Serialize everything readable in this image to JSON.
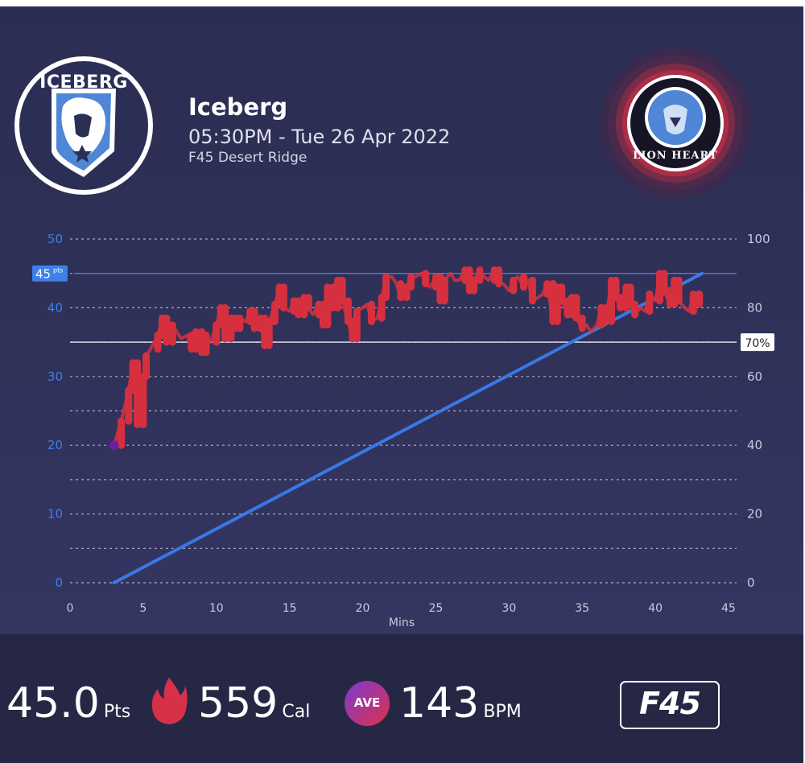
{
  "header": {
    "title": "Iceberg",
    "datetime": "05:30PM - Tue 26 Apr 2022",
    "location": "F45 Desert Ridge"
  },
  "team_logo": {
    "text": "ICEBERG",
    "icon": "bear-icon"
  },
  "opponent_logo": {
    "text": "LION HEART",
    "icon": "lion-icon"
  },
  "stats": {
    "points_value": "45.0",
    "points_unit": "Pts",
    "calories_value": "559",
    "calories_unit": "Cal",
    "bpm_value": "143",
    "bpm_unit": "BPM",
    "ave_label": "AVE"
  },
  "brand": {
    "text": "F45"
  },
  "colors": {
    "background": "#2f3158",
    "heart_rate": "#d6303f",
    "points_line": "#3a78e6",
    "left_axis": "#3f7fe8",
    "start_marker": "#6a1fa0"
  },
  "chart_data": {
    "type": "line",
    "xlabel": "Mins",
    "x_ticks": [
      0,
      5,
      10,
      15,
      20,
      25,
      30,
      35,
      40,
      45
    ],
    "xlim": [
      0,
      45
    ],
    "left_axis": {
      "ticks": [
        0,
        10,
        20,
        30,
        40,
        50
      ],
      "ylim": [
        0,
        50
      ]
    },
    "right_axis": {
      "ticks": [
        0,
        20,
        40,
        60,
        80,
        100
      ],
      "ylim": [
        0,
        100
      ]
    },
    "points_marker_label": "45",
    "points_marker_unit": "pts",
    "points_marker_value": 45,
    "threshold_label": "70%",
    "threshold_value": 70,
    "series": [
      {
        "axis": "left",
        "x": [
          3,
          43.2
        ],
        "y": [
          0,
          45
        ]
      },
      {
        "axis": "right",
        "x": [
          3,
          3.5,
          4,
          4.3,
          4.6,
          5,
          5.2,
          5.5,
          6,
          6.3,
          6.6,
          7,
          7.3,
          7.6,
          8,
          8.3,
          8.6,
          9,
          9.3,
          9.6,
          10,
          10.3,
          10.6,
          11,
          11.3,
          11.6,
          12,
          12.3,
          12.6,
          13,
          13.3,
          13.6,
          14,
          14.3,
          14.6,
          15,
          15.3,
          15.6,
          16,
          16.3,
          16.6,
          17,
          17.3,
          17.6,
          18,
          18.3,
          18.6,
          19,
          19.3,
          19.6,
          20,
          20.3,
          20.6,
          21,
          21.3,
          21.6,
          22,
          22.3,
          22.6,
          23,
          23.3,
          23.6,
          24,
          24.3,
          24.6,
          25,
          25.3,
          25.6,
          26,
          26.3,
          26.6,
          27,
          27.3,
          27.6,
          28,
          28.3,
          28.6,
          29,
          29.3,
          29.6,
          30,
          30.3,
          30.6,
          31,
          31.3,
          31.6,
          32,
          32.3,
          32.6,
          33,
          33.3,
          33.6,
          34,
          34.3,
          34.6,
          35,
          35.3,
          35.6,
          36,
          36.3,
          36.6,
          37,
          37.3,
          37.6,
          38,
          38.3,
          38.6,
          39,
          39.3,
          39.6,
          40,
          40.3,
          40.6,
          41,
          41.3,
          41.6,
          42,
          42.3,
          42.6,
          43,
          43.2
        ],
        "y": [
          40,
          47,
          56,
          64,
          46,
          60,
          66,
          68,
          72,
          77,
          70,
          75,
          73,
          71,
          72,
          68,
          73,
          67,
          72,
          70,
          75,
          80,
          71,
          77,
          74,
          77,
          76,
          79,
          74,
          77,
          69,
          76,
          81,
          86,
          80,
          79,
          82,
          78,
          83,
          80,
          78,
          81,
          75,
          86,
          80,
          88,
          82,
          76,
          71,
          79,
          80,
          81,
          76,
          77,
          83,
          89,
          89,
          87,
          83,
          86,
          89,
          89,
          90,
          87,
          86,
          89,
          82,
          88,
          90,
          88,
          88,
          91,
          85,
          88,
          91,
          89,
          88,
          91,
          87,
          87,
          85,
          88,
          89,
          86,
          88,
          82,
          83,
          84,
          87,
          76,
          86,
          82,
          78,
          83,
          77,
          74,
          75,
          73,
          75,
          80,
          76,
          88,
          83,
          80,
          86,
          81,
          78,
          80,
          79,
          84,
          82,
          90,
          85,
          81,
          88,
          82,
          80,
          79,
          84,
          81,
          83
        ]
      }
    ]
  }
}
